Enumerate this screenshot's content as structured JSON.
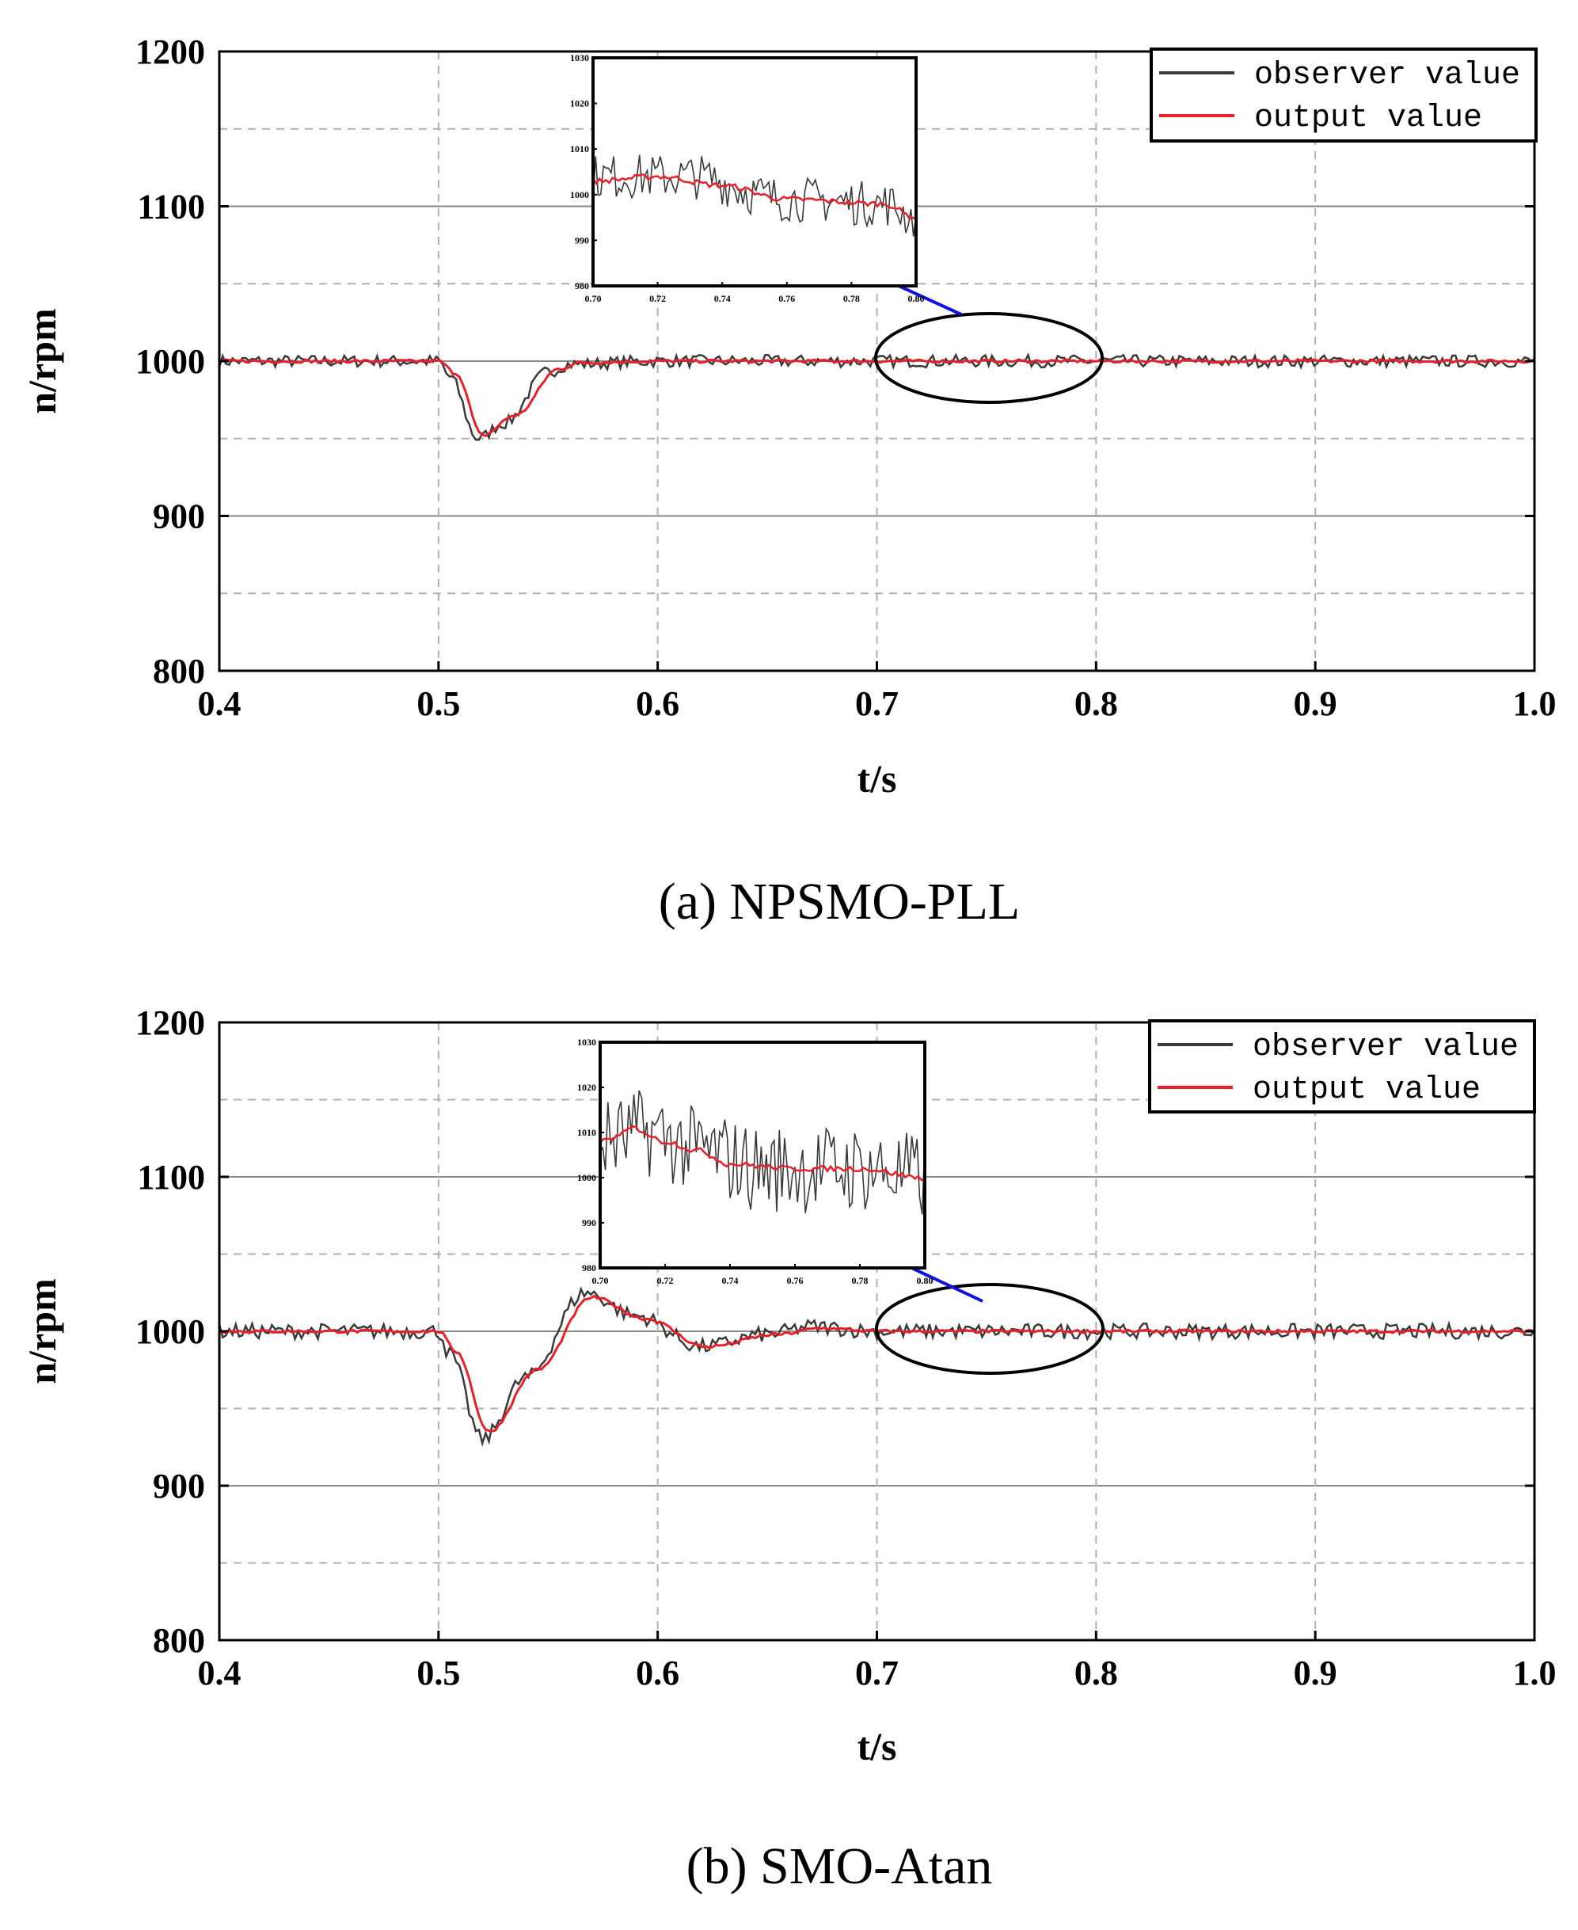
{
  "colors": {
    "observer": "#3a3a3a",
    "output": "#e8202a",
    "arrow": "#1010e0",
    "grid": "#b0b0b0"
  },
  "chart_data": [
    {
      "type": "line",
      "caption": "(a) NPSMO-PLL",
      "xlabel": "t/s",
      "ylabel": "n/rpm",
      "xlim": [
        0.4,
        1.0
      ],
      "ylim": [
        800,
        1200
      ],
      "xticks": [
        "0.4",
        "0.5",
        "0.6",
        "0.7",
        "0.8",
        "0.9",
        "1.0"
      ],
      "yticks": [
        "800",
        "900",
        "1000",
        "1100",
        "1200"
      ],
      "legend": {
        "position": "top-right",
        "entries": [
          "observer value",
          "output value"
        ]
      },
      "series": [
        {
          "name": "observer value",
          "x": [
            0.4,
            0.5,
            0.505,
            0.518,
            0.53,
            0.55,
            0.56,
            0.6,
            0.7,
            0.8,
            1.0
          ],
          "y": [
            1000,
            1000,
            990,
            950,
            960,
            993,
            998,
            1000,
            1000,
            1000,
            1000
          ],
          "noise": 4
        },
        {
          "name": "output value",
          "x": [
            0.4,
            0.5,
            0.508,
            0.52,
            0.535,
            0.555,
            0.565,
            0.6,
            0.7,
            0.8,
            1.0
          ],
          "y": [
            1000,
            1000,
            992,
            952,
            965,
            995,
            999,
            1000,
            1000,
            1000,
            1000
          ],
          "noise": 1
        }
      ],
      "inset": {
        "xlim": [
          0.7,
          0.8
        ],
        "ylim": [
          980,
          1030
        ],
        "xticks": [
          "0.70",
          "0.72",
          "0.74",
          "0.76",
          "0.78",
          "0.80"
        ],
        "yticks": [
          "980",
          "990",
          "1000",
          "1010",
          "1020",
          "1030"
        ],
        "observer_trend": [
          [
            0.7,
            1004
          ],
          [
            0.73,
            1004
          ],
          [
            0.76,
            999
          ],
          [
            0.79,
            998
          ],
          [
            0.8,
            995
          ]
        ],
        "observer_noise": 5,
        "output_trend": [
          [
            0.7,
            1003
          ],
          [
            0.72,
            1004
          ],
          [
            0.74,
            1002
          ],
          [
            0.76,
            999
          ],
          [
            0.79,
            998
          ],
          [
            0.8,
            995
          ]
        ]
      },
      "annotation": "ellipse around t=0.7-0.8 with arrow to inset"
    },
    {
      "type": "line",
      "caption": "(b) SMO-Atan",
      "xlabel": "t/s",
      "ylabel": "n/rpm",
      "xlim": [
        0.4,
        1.0
      ],
      "ylim": [
        800,
        1200
      ],
      "xticks": [
        "0.4",
        "0.5",
        "0.6",
        "0.7",
        "0.8",
        "0.9",
        "1.0"
      ],
      "yticks": [
        "800",
        "900",
        "1000",
        "1100",
        "1200"
      ],
      "legend": {
        "position": "top-right",
        "entries": [
          "observer value",
          "output value"
        ]
      },
      "series": [
        {
          "name": "observer value",
          "x": [
            0.4,
            0.5,
            0.505,
            0.52,
            0.54,
            0.567,
            0.59,
            0.62,
            0.65,
            0.67,
            0.7,
            1.0
          ],
          "y": [
            1000,
            1000,
            985,
            930,
            970,
            1025,
            1010,
            990,
            998,
            1003,
            1000,
            1000
          ],
          "noise": 5
        },
        {
          "name": "output value",
          "x": [
            0.4,
            0.5,
            0.508,
            0.523,
            0.545,
            0.57,
            0.595,
            0.622,
            0.655,
            0.675,
            0.7,
            1.0
          ],
          "y": [
            1000,
            1000,
            987,
            935,
            975,
            1022,
            1008,
            990,
            998,
            1002,
            1000,
            1000
          ],
          "noise": 1
        }
      ],
      "inset": {
        "xlim": [
          0.7,
          0.8
        ],
        "ylim": [
          980,
          1030
        ],
        "xticks": [
          "0.70",
          "0.72",
          "0.74",
          "0.76",
          "0.78",
          "0.80"
        ],
        "yticks": [
          "980",
          "990",
          "1000",
          "1010",
          "1020",
          "1030"
        ],
        "observer_trend": [
          [
            0.7,
            1008
          ],
          [
            0.715,
            1010
          ],
          [
            0.73,
            1006
          ],
          [
            0.75,
            1002
          ],
          [
            0.78,
            1002
          ],
          [
            0.8,
            1000
          ]
        ],
        "observer_noise": 10,
        "output_trend": [
          [
            0.7,
            1008
          ],
          [
            0.705,
            1009
          ],
          [
            0.71,
            1011
          ],
          [
            0.72,
            1008
          ],
          [
            0.73,
            1006
          ],
          [
            0.74,
            1003
          ],
          [
            0.76,
            1002
          ],
          [
            0.78,
            1002
          ],
          [
            0.8,
            1000
          ]
        ]
      },
      "annotation": "ellipse around t=0.7-0.8 with arrow to inset"
    }
  ]
}
